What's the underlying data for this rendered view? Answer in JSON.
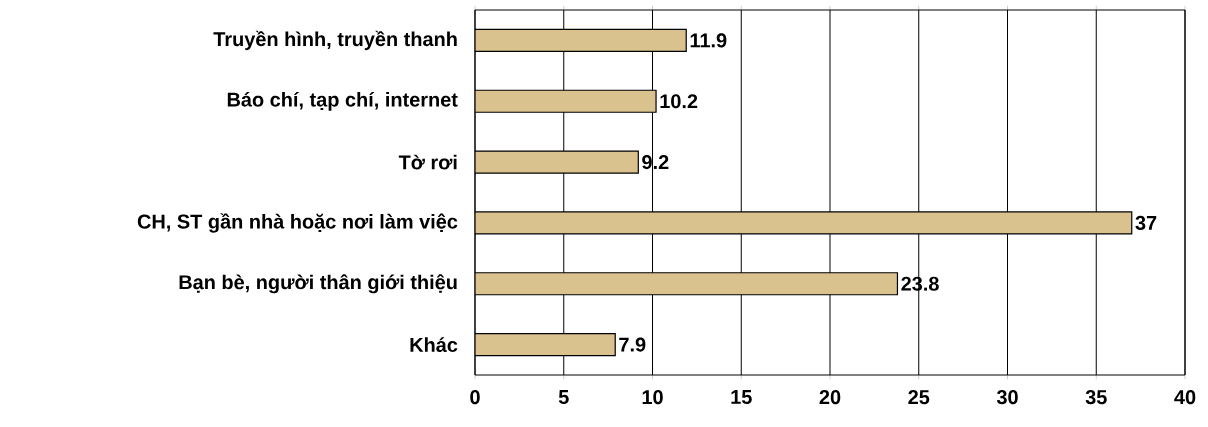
{
  "chart_data": {
    "type": "bar",
    "orientation": "horizontal",
    "categories": [
      "Truyền hình, truyền thanh",
      "Báo chí, tạp chí, internet",
      "Tờ rơi",
      "CH, ST gần nhà hoặc nơi làm việc",
      "Bạn bè, người thân giới thiệu",
      "Khác"
    ],
    "values": [
      11.9,
      10.2,
      9.2,
      37,
      23.8,
      7.9
    ],
    "color": "#d9c28e",
    "data_labels": true,
    "grid": "x",
    "xlim": [
      0,
      40
    ],
    "xticks": [
      0,
      5,
      10,
      15,
      20,
      25,
      30,
      35,
      40
    ]
  }
}
